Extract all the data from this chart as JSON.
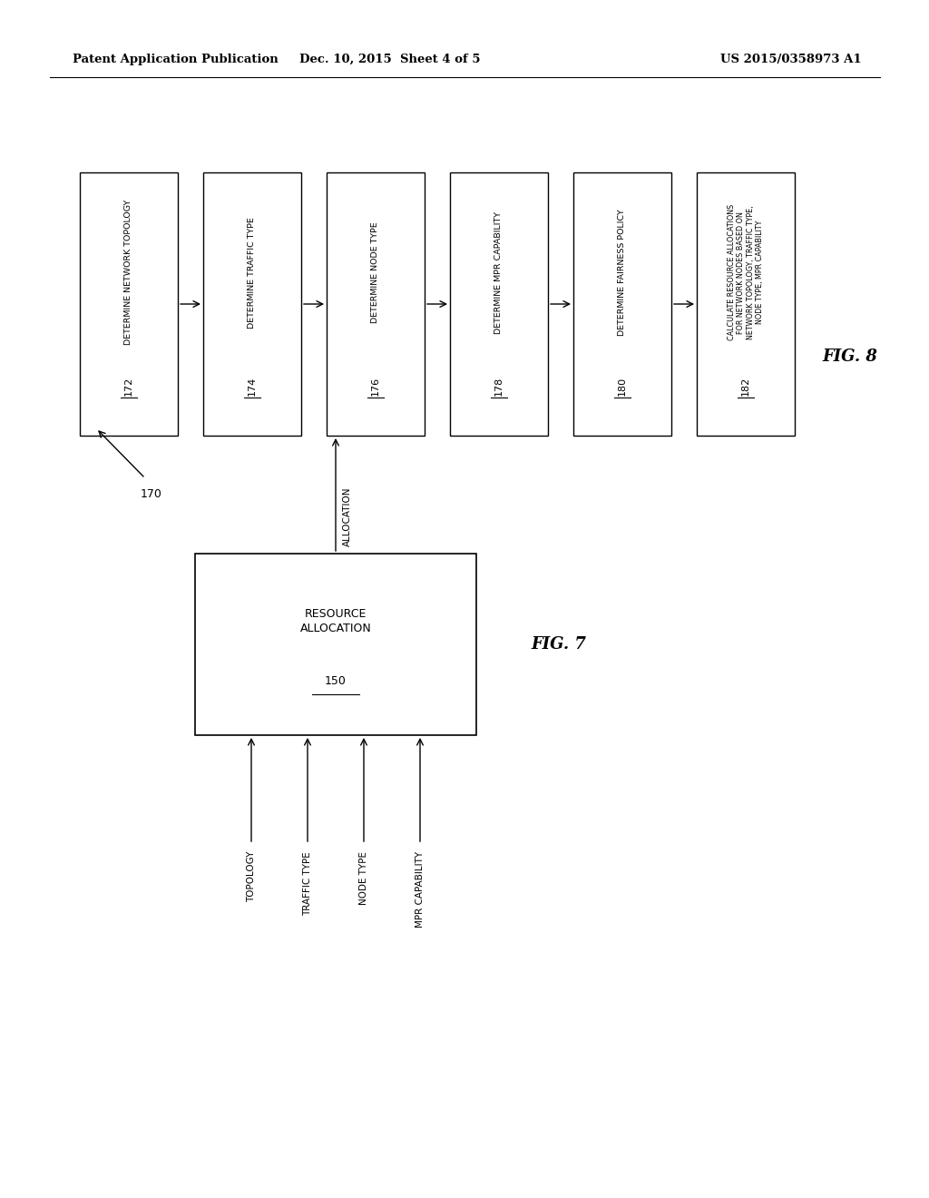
{
  "background_color": "#ffffff",
  "header_left": "Patent Application Publication",
  "header_center": "Dec. 10, 2015  Sheet 4 of 5",
  "header_right": "US 2015/0358973 A1",
  "fig8": {
    "label": "FIG. 8",
    "flow_label": "170",
    "boxes": [
      {
        "id": "172",
        "text": "DETERMINE NETWORK TOPOLOGY"
      },
      {
        "id": "174",
        "text": "DETERMINE TRAFFIC TYPE"
      },
      {
        "id": "176",
        "text": "DETERMINE NODE TYPE"
      },
      {
        "id": "178",
        "text": "DETERMINE MPR CAPABILITY"
      },
      {
        "id": "180",
        "text": "DETERMINE FAIRNESS POLICY"
      },
      {
        "id": "182",
        "text": "CALCULATE RESOURCE ALLOCATIONS\nFOR NETWORK NODES BASED ON\nNETWORK TOPOLOGY, TRAFFIC TYPE,\nNODE TYPE, MPR CAPABILITY"
      }
    ]
  },
  "fig7": {
    "label": "FIG. 7",
    "box_text": "RESOURCE\nALLOCATION",
    "box_number": "150",
    "inputs": [
      "TOPOLOGY",
      "TRAFFIC TYPE",
      "NODE TYPE",
      "MPR CAPABILITY"
    ],
    "output": "ALLOCATION"
  }
}
